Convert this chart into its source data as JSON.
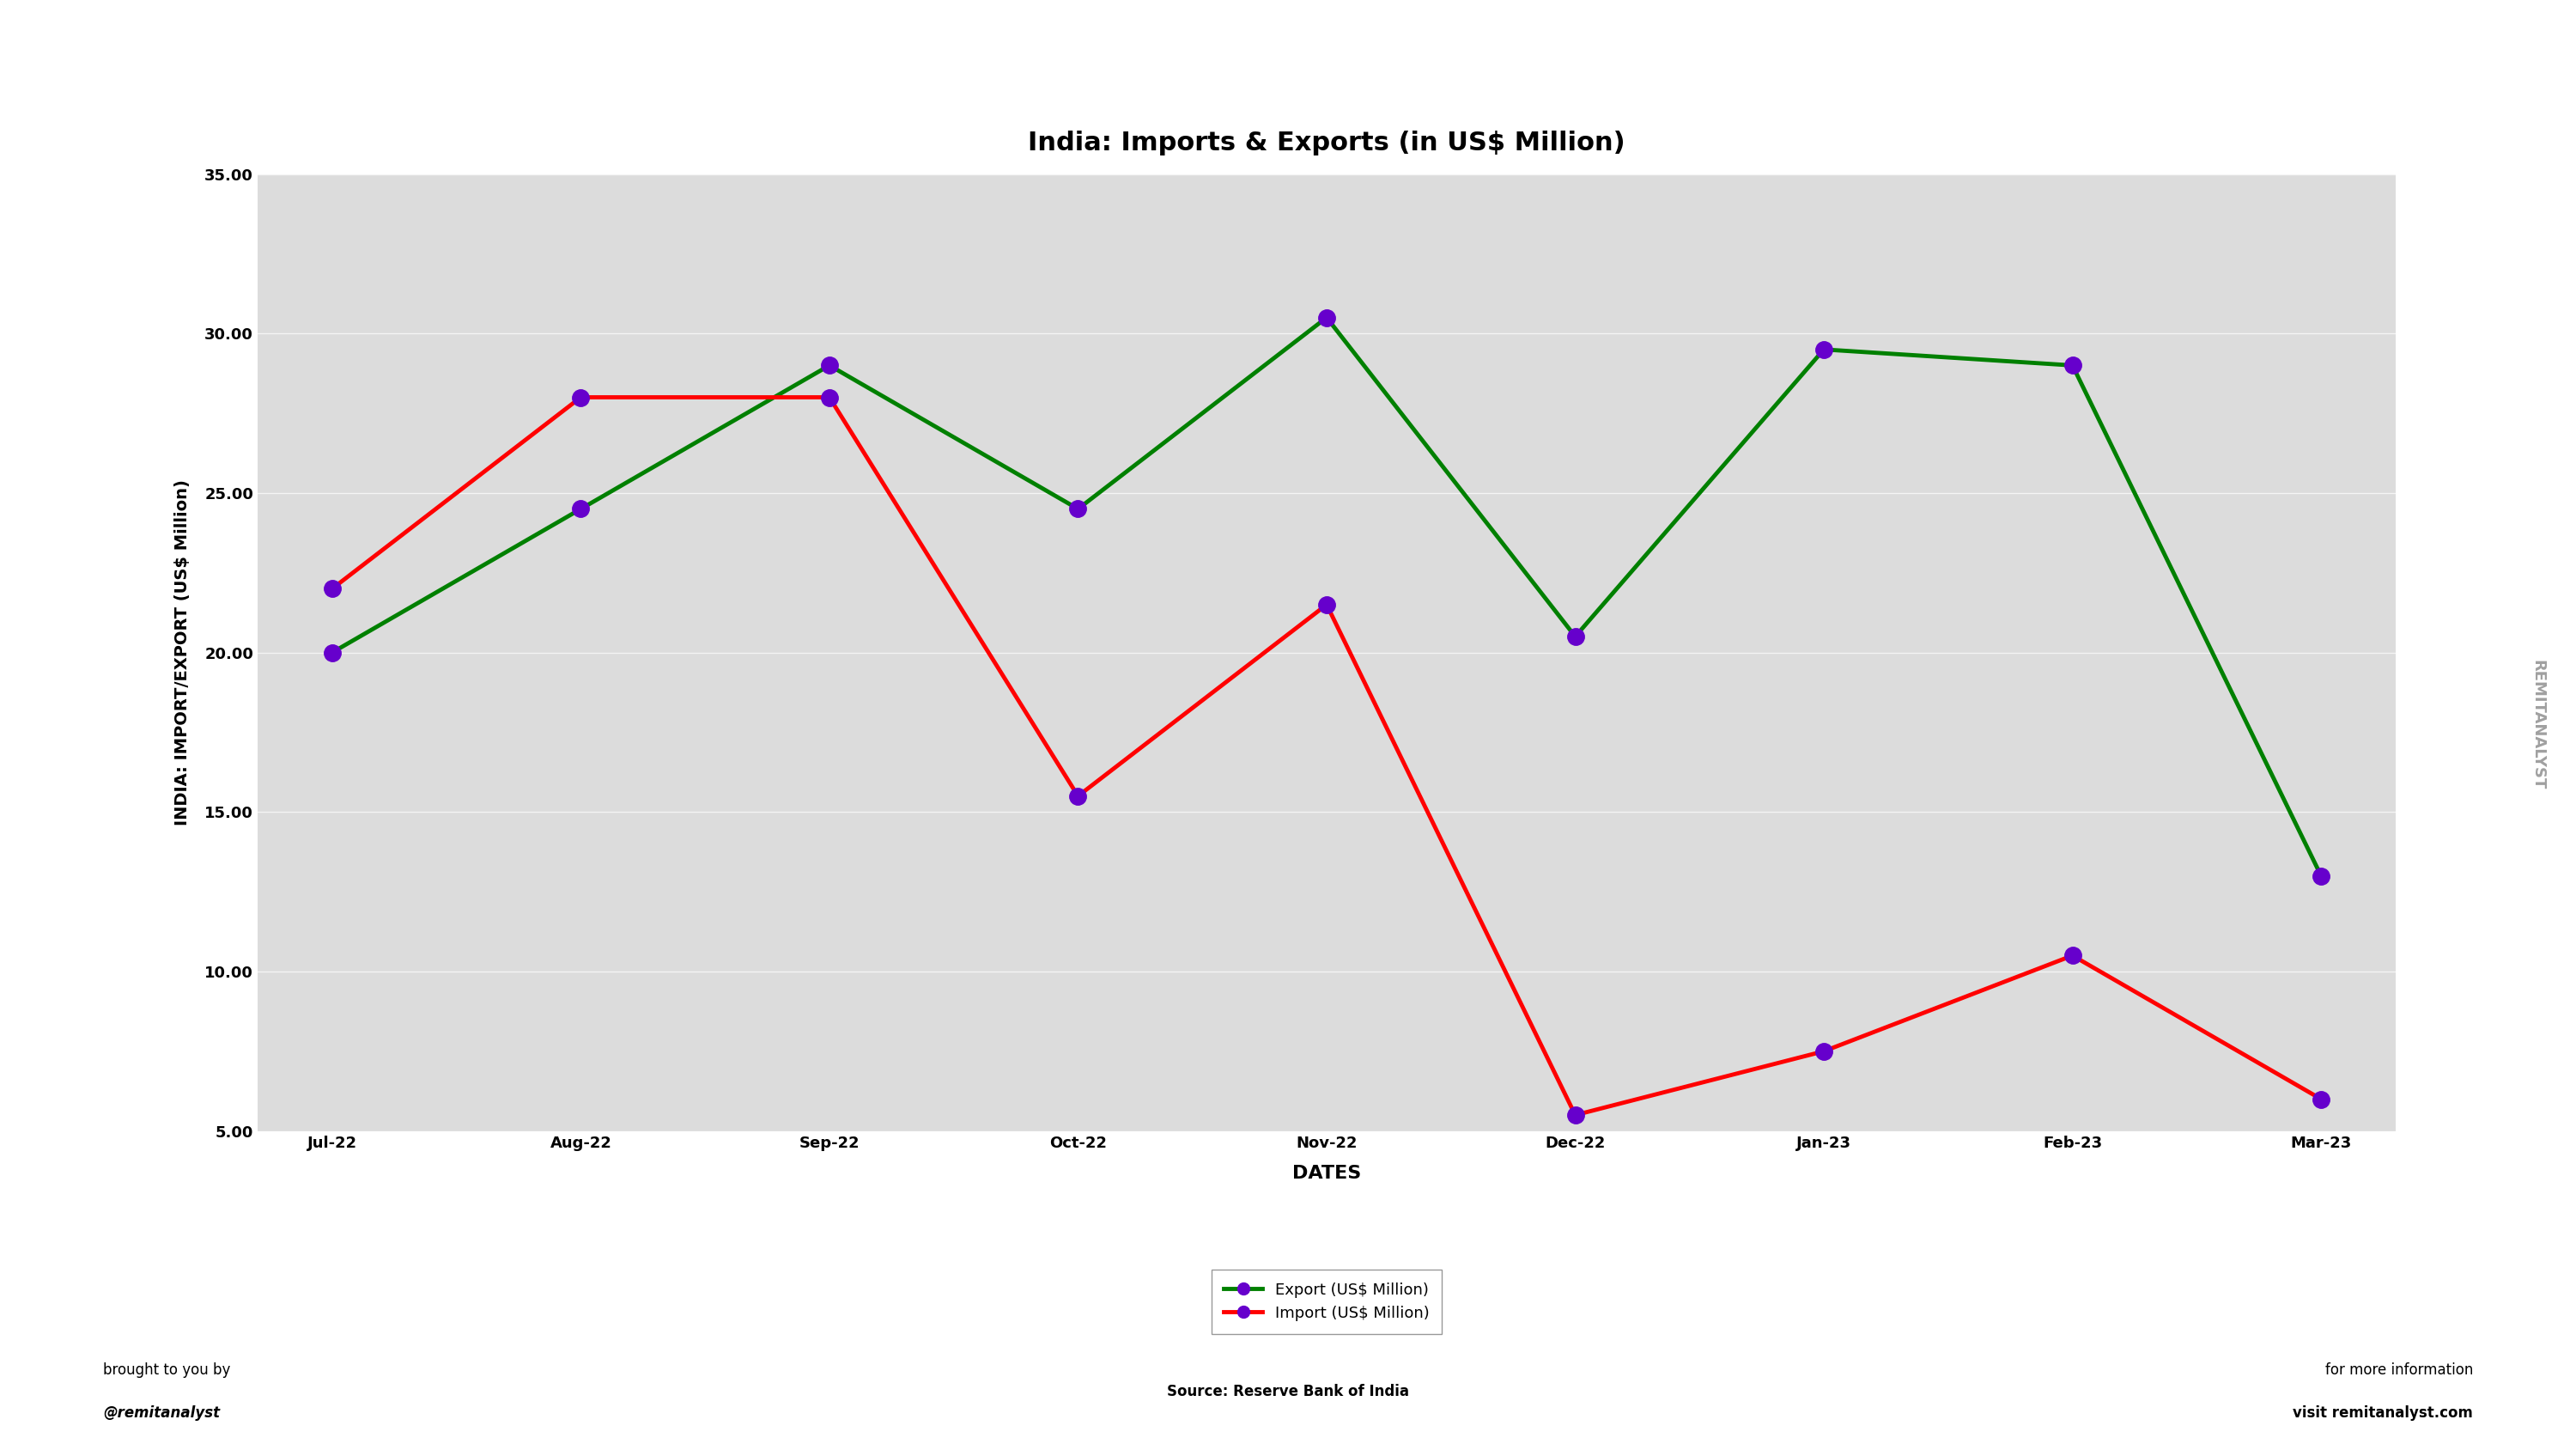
{
  "title": "India: Imports & Exports (in US$ Million)",
  "xlabel": "DATES",
  "ylabel": "INDIA: IMPORT/EXPORT (US$ Million)",
  "dates": [
    "Jul-22",
    "Aug-22",
    "Sep-22",
    "Oct-22",
    "Nov-22",
    "Dec-22",
    "Jan-23",
    "Feb-23",
    "Mar-23"
  ],
  "export": [
    20.0,
    24.5,
    29.0,
    24.5,
    30.5,
    20.5,
    29.5,
    29.0,
    13.0
  ],
  "import": [
    22.0,
    28.0,
    28.0,
    15.5,
    21.5,
    5.5,
    7.5,
    10.5,
    6.0
  ],
  "export_color": "#008000",
  "import_color": "#ff0000",
  "marker_color": "#6600cc",
  "ylim_min": 5.0,
  "ylim_max": 35.0,
  "yticks": [
    5.0,
    10.0,
    15.0,
    20.0,
    25.0,
    30.0,
    35.0
  ],
  "export_label": "Export (US$ Million)",
  "import_label": "Import (US$ Million)",
  "source_text": "Source: Reserve Bank of India",
  "bottom_left_line1": "brought to you by",
  "bottom_left_line2": "@remitanalyst",
  "bottom_right_line1": "for more information",
  "bottom_right_line2": "visit remitanalyst.com",
  "watermark": "REMITANALYST",
  "plot_bg_color": "#dcdcdc",
  "title_fontsize": 22,
  "axis_label_fontsize": 14,
  "tick_fontsize": 13,
  "legend_fontsize": 13,
  "line_width": 3.5,
  "marker_size": 14
}
